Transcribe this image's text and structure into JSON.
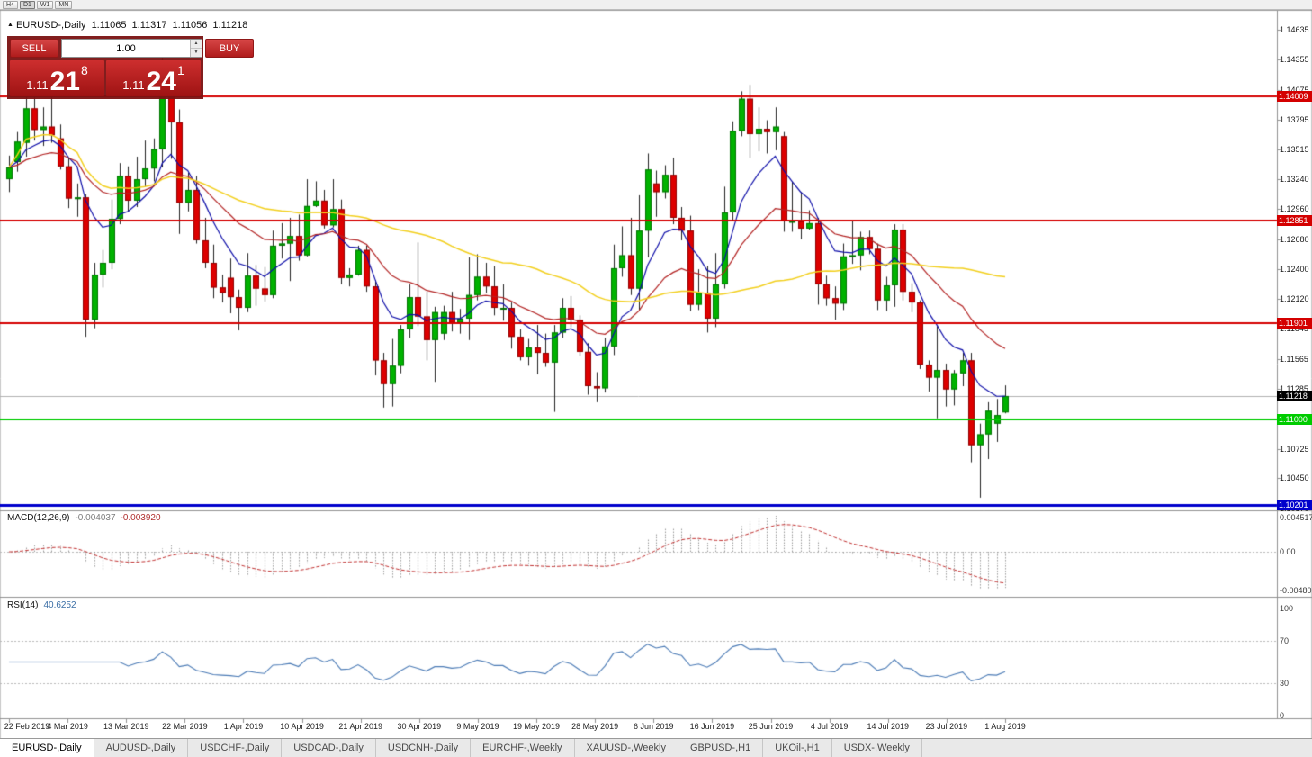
{
  "toolbar": {
    "timeframes": [
      {
        "label": "H4",
        "active": false
      },
      {
        "label": "D1",
        "active": true
      },
      {
        "label": "W1",
        "active": false
      },
      {
        "label": "MN",
        "active": false
      }
    ]
  },
  "chart_header": {
    "marker": "▲",
    "symbol": "EURUSD-,Daily",
    "open": "1.11065",
    "high": "1.11317",
    "low": "1.11056",
    "close": "1.11218"
  },
  "trade_panel": {
    "sell_label": "SELL",
    "buy_label": "BUY",
    "volume": "1.00",
    "spinner_up": "▲",
    "spinner_down": "▼",
    "sell_price": {
      "prefix": "1.11",
      "big": "21",
      "sup": "8"
    },
    "buy_price": {
      "prefix": "1.11",
      "big": "24",
      "sup": "1"
    }
  },
  "price_axis": {
    "labels": [
      "1.14635",
      "1.14355",
      "1.14075",
      "1.13795",
      "1.13515",
      "1.13240",
      "1.12960",
      "1.12680",
      "1.12400",
      "1.12120",
      "1.11845",
      "1.11565",
      "1.11285",
      "1.11005",
      "1.10725",
      "1.10450",
      "1.10170"
    ],
    "current": {
      "label": "1.11218",
      "color": "#000000"
    }
  },
  "levels": [
    {
      "label": "1.14009",
      "price": 1.14009,
      "color": "#d40000",
      "width": 2
    },
    {
      "label": "1.12851",
      "price": 1.12851,
      "color": "#d40000",
      "width": 2
    },
    {
      "label": "1.11901",
      "price": 1.11901,
      "color": "#d40000",
      "width": 2
    },
    {
      "label": "1.11000",
      "price": 1.11,
      "color": "#00cc00",
      "width": 2
    },
    {
      "label": "1.10201",
      "price": 1.10201,
      "color": "#0000cc",
      "width": 3
    }
  ],
  "macd_panel": {
    "title": "MACD(12,26,9)",
    "value_main": "-0.004037",
    "value_signal": "-0.003920",
    "axis_labels": [
      "0.004517",
      "0.00",
      "-0.00480"
    ],
    "fast": 12,
    "slow": 26,
    "signal": 9
  },
  "rsi_panel": {
    "title": "RSI(14)",
    "value": "40.6252",
    "axis_labels": [
      "100",
      "70",
      "30",
      "0"
    ],
    "period": 14,
    "upper": 70,
    "lower": 30
  },
  "date_axis": {
    "labels": [
      "22 Feb 2019",
      "4 Mar 2019",
      "13 Mar 2019",
      "22 Mar 2019",
      "1 Apr 2019",
      "10 Apr 2019",
      "21 Apr 2019",
      "30 Apr 2019",
      "9 May 2019",
      "19 May 2019",
      "28 May 2019",
      "6 Jun 2019",
      "16 Jun 2019",
      "25 Jun 2019",
      "4 Jul 2019",
      "14 Jul 2019",
      "23 Jul 2019",
      "1 Aug 2019"
    ]
  },
  "tabs": [
    {
      "label": "EURUSD-,Daily",
      "active": true
    },
    {
      "label": "AUDUSD-,Daily",
      "active": false
    },
    {
      "label": "USDCHF-,Daily",
      "active": false
    },
    {
      "label": "USDCAD-,Daily",
      "active": false
    },
    {
      "label": "USDCNH-,Daily",
      "active": false
    },
    {
      "label": "EURCHF-,Weekly",
      "active": false
    },
    {
      "label": "XAUUSD-,Weekly",
      "active": false
    },
    {
      "label": "GBPUSD-,H1",
      "active": false
    },
    {
      "label": "UKOil-,H1",
      "active": false
    },
    {
      "label": "USDX-,Weekly",
      "active": false
    }
  ],
  "chart_data": {
    "type": "candlestick",
    "symbol": "EURUSD",
    "timeframe": "Daily",
    "title": "EURUSD-,Daily",
    "price_range": {
      "min": 1.1016,
      "max": 1.1481
    },
    "current_bid": 1.11218,
    "current_ask": 1.11241,
    "colors": {
      "up": "#00b200",
      "down": "#dd0000",
      "wick": "#222222",
      "up_border": "#007300",
      "down_border": "#8f0000",
      "ma_fast": "#0d0da8",
      "ma_mid": "#b22222",
      "ma_slow": "#f2cf1d",
      "macd_hist": "#9a9a9a",
      "macd_signal": "#c03030",
      "rsi_line": "#4a7ab5",
      "current_line": "#b0b0b0"
    },
    "moving_averages": [
      {
        "type": "ema",
        "period": 8,
        "color_key": "ma_fast"
      },
      {
        "type": "ema",
        "period": 21,
        "color_key": "ma_mid"
      },
      {
        "type": "sma",
        "period": 50,
        "color_key": "ma_slow"
      }
    ],
    "candles": [
      [
        "2019-02-22",
        1.1324,
        1.1346,
        1.1312,
        1.1335
      ],
      [
        "2019-02-25",
        1.134,
        1.1368,
        1.1331,
        1.1359
      ],
      [
        "2019-02-26",
        1.1358,
        1.1403,
        1.1345,
        1.139
      ],
      [
        "2019-02-27",
        1.139,
        1.1404,
        1.136,
        1.137
      ],
      [
        "2019-02-28",
        1.137,
        1.1391,
        1.1355,
        1.1373
      ],
      [
        "2019-03-01",
        1.1373,
        1.1409,
        1.1358,
        1.1365
      ],
      [
        "2019-03-04",
        1.1362,
        1.1375,
        1.1333,
        1.1336
      ],
      [
        "2019-03-05",
        1.1336,
        1.1344,
        1.1297,
        1.1306
      ],
      [
        "2019-03-06",
        1.1306,
        1.132,
        1.1289,
        1.1307
      ],
      [
        "2019-03-07",
        1.1307,
        1.131,
        1.1177,
        1.1193
      ],
      [
        "2019-03-08",
        1.1193,
        1.1246,
        1.1185,
        1.1235
      ],
      [
        "2019-03-11",
        1.1235,
        1.1258,
        1.1223,
        1.1246
      ],
      [
        "2019-03-12",
        1.1246,
        1.1305,
        1.124,
        1.1287
      ],
      [
        "2019-03-13",
        1.1287,
        1.1339,
        1.1282,
        1.1327
      ],
      [
        "2019-03-14",
        1.1327,
        1.1336,
        1.1294,
        1.1304
      ],
      [
        "2019-03-15",
        1.1304,
        1.1345,
        1.1298,
        1.1324
      ],
      [
        "2019-03-18",
        1.1324,
        1.136,
        1.1317,
        1.1334
      ],
      [
        "2019-03-19",
        1.1334,
        1.1362,
        1.1322,
        1.1352
      ],
      [
        "2019-03-20",
        1.1352,
        1.1438,
        1.1335,
        1.1412
      ],
      [
        "2019-03-21",
        1.1412,
        1.1419,
        1.1343,
        1.1377
      ],
      [
        "2019-03-22",
        1.1377,
        1.1389,
        1.1273,
        1.1302
      ],
      [
        "2019-03-25",
        1.1302,
        1.133,
        1.1294,
        1.1314
      ],
      [
        "2019-03-26",
        1.1314,
        1.1327,
        1.1264,
        1.1267
      ],
      [
        "2019-03-27",
        1.1267,
        1.1288,
        1.1241,
        1.1246
      ],
      [
        "2019-03-28",
        1.1246,
        1.1263,
        1.1213,
        1.1223
      ],
      [
        "2019-03-29",
        1.1223,
        1.1235,
        1.1209,
        1.1218
      ],
      [
        "2019-04-01",
        1.1232,
        1.125,
        1.1199,
        1.1214
      ],
      [
        "2019-04-02",
        1.1214,
        1.1221,
        1.1183,
        1.1204
      ],
      [
        "2019-04-03",
        1.1204,
        1.1255,
        1.12,
        1.1234
      ],
      [
        "2019-04-04",
        1.1234,
        1.1244,
        1.1206,
        1.1222
      ],
      [
        "2019-04-05",
        1.1222,
        1.1242,
        1.121,
        1.1216
      ],
      [
        "2019-04-08",
        1.1216,
        1.1276,
        1.1213,
        1.1262
      ],
      [
        "2019-04-09",
        1.1262,
        1.1283,
        1.125,
        1.1264
      ],
      [
        "2019-04-10",
        1.1264,
        1.1288,
        1.1229,
        1.1271
      ],
      [
        "2019-04-11",
        1.1271,
        1.1291,
        1.1248,
        1.1253
      ],
      [
        "2019-04-12",
        1.1253,
        1.1324,
        1.1252,
        1.1299
      ],
      [
        "2019-04-15",
        1.1299,
        1.1322,
        1.1298,
        1.1304
      ],
      [
        "2019-04-16",
        1.1304,
        1.1314,
        1.1278,
        1.1281
      ],
      [
        "2019-04-17",
        1.1281,
        1.1324,
        1.1279,
        1.1296
      ],
      [
        "2019-04-18",
        1.1296,
        1.1305,
        1.1226,
        1.1232
      ],
      [
        "2019-04-19",
        1.1232,
        1.1241,
        1.1224,
        1.1235
      ],
      [
        "2019-04-22",
        1.1235,
        1.1262,
        1.1234,
        1.1258
      ],
      [
        "2019-04-23",
        1.1258,
        1.1262,
        1.1219,
        1.1224
      ],
      [
        "2019-04-24",
        1.1224,
        1.123,
        1.1141,
        1.1155
      ],
      [
        "2019-04-25",
        1.1155,
        1.1162,
        1.1111,
        1.1133
      ],
      [
        "2019-04-26",
        1.1133,
        1.1175,
        1.1112,
        1.115
      ],
      [
        "2019-04-29",
        1.115,
        1.1188,
        1.1143,
        1.1184
      ],
      [
        "2019-04-30",
        1.1184,
        1.1226,
        1.1176,
        1.1214
      ],
      [
        "2019-05-01",
        1.1214,
        1.1265,
        1.1187,
        1.1196
      ],
      [
        "2019-05-02",
        1.1196,
        1.1219,
        1.1155,
        1.1174
      ],
      [
        "2019-05-03",
        1.1174,
        1.1205,
        1.1135,
        1.12
      ],
      [
        "2019-05-06",
        1.118,
        1.1206,
        1.1174,
        1.12
      ],
      [
        "2019-05-07",
        1.12,
        1.1219,
        1.1182,
        1.119
      ],
      [
        "2019-05-08",
        1.119,
        1.1203,
        1.118,
        1.1194
      ],
      [
        "2019-05-09",
        1.1194,
        1.1251,
        1.1174,
        1.1216
      ],
      [
        "2019-05-10",
        1.1216,
        1.1254,
        1.1211,
        1.1233
      ],
      [
        "2019-05-13",
        1.1233,
        1.1246,
        1.1218,
        1.1224
      ],
      [
        "2019-05-14",
        1.1224,
        1.1243,
        1.1197,
        1.1204
      ],
      [
        "2019-05-15",
        1.1204,
        1.1226,
        1.1192,
        1.1204
      ],
      [
        "2019-05-16",
        1.1204,
        1.1209,
        1.1166,
        1.1177
      ],
      [
        "2019-05-17",
        1.1177,
        1.1184,
        1.1155,
        1.1158
      ],
      [
        "2019-05-20",
        1.1158,
        1.1175,
        1.115,
        1.1167
      ],
      [
        "2019-05-21",
        1.1167,
        1.1188,
        1.1142,
        1.1162
      ],
      [
        "2019-05-22",
        1.1162,
        1.118,
        1.1149,
        1.1153
      ],
      [
        "2019-05-23",
        1.1153,
        1.1188,
        1.1107,
        1.1181
      ],
      [
        "2019-05-24",
        1.1181,
        1.1213,
        1.1176,
        1.1204
      ],
      [
        "2019-05-27",
        1.1204,
        1.1215,
        1.1186,
        1.1193
      ],
      [
        "2019-05-28",
        1.1193,
        1.1197,
        1.1159,
        1.1163
      ],
      [
        "2019-05-29",
        1.1163,
        1.1171,
        1.1123,
        1.1131
      ],
      [
        "2019-05-30",
        1.1131,
        1.1144,
        1.1116,
        1.1129
      ],
      [
        "2019-05-31",
        1.1129,
        1.1176,
        1.1125,
        1.1168
      ],
      [
        "2019-06-03",
        1.1168,
        1.1263,
        1.116,
        1.1241
      ],
      [
        "2019-06-04",
        1.1241,
        1.128,
        1.1233,
        1.1253
      ],
      [
        "2019-06-05",
        1.1253,
        1.1288,
        1.1216,
        1.1222
      ],
      [
        "2019-06-06",
        1.1222,
        1.1309,
        1.1202,
        1.1276
      ],
      [
        "2019-06-07",
        1.1276,
        1.1348,
        1.1251,
        1.1333
      ],
      [
        "2019-06-10",
        1.132,
        1.1332,
        1.1289,
        1.1312
      ],
      [
        "2019-06-11",
        1.1312,
        1.1337,
        1.1306,
        1.1328
      ],
      [
        "2019-06-12",
        1.1328,
        1.1344,
        1.1282,
        1.1288
      ],
      [
        "2019-06-13",
        1.1288,
        1.1298,
        1.1267,
        1.1276
      ],
      [
        "2019-06-14",
        1.1276,
        1.129,
        1.1201,
        1.1207
      ],
      [
        "2019-06-17",
        1.1207,
        1.124,
        1.1202,
        1.1218
      ],
      [
        "2019-06-18",
        1.1218,
        1.1243,
        1.1181,
        1.1194
      ],
      [
        "2019-06-19",
        1.1194,
        1.1255,
        1.1186,
        1.1226
      ],
      [
        "2019-06-20",
        1.1226,
        1.1317,
        1.1222,
        1.1293
      ],
      [
        "2019-06-21",
        1.1293,
        1.1378,
        1.1285,
        1.1369
      ],
      [
        "2019-06-24",
        1.1369,
        1.1406,
        1.1364,
        1.1399
      ],
      [
        "2019-06-25",
        1.1399,
        1.1412,
        1.1344,
        1.1366
      ],
      [
        "2019-06-26",
        1.1366,
        1.1391,
        1.135,
        1.1371
      ],
      [
        "2019-06-27",
        1.1371,
        1.1379,
        1.1348,
        1.1368
      ],
      [
        "2019-06-28",
        1.1368,
        1.1391,
        1.1351,
        1.1373
      ],
      [
        "2019-07-01",
        1.1364,
        1.1368,
        1.1275,
        1.1285
      ],
      [
        "2019-07-02",
        1.1285,
        1.1322,
        1.1275,
        1.1285
      ],
      [
        "2019-07-03",
        1.1285,
        1.1312,
        1.1268,
        1.1278
      ],
      [
        "2019-07-04",
        1.1278,
        1.1295,
        1.1277,
        1.1283
      ],
      [
        "2019-07-05",
        1.1283,
        1.1288,
        1.1207,
        1.1226
      ],
      [
        "2019-07-08",
        1.1226,
        1.1234,
        1.1206,
        1.1213
      ],
      [
        "2019-07-09",
        1.1213,
        1.1224,
        1.1193,
        1.1208
      ],
      [
        "2019-07-10",
        1.1208,
        1.1264,
        1.1202,
        1.1252
      ],
      [
        "2019-07-11",
        1.1252,
        1.1286,
        1.1245,
        1.1253
      ],
      [
        "2019-07-12",
        1.1253,
        1.1275,
        1.1239,
        1.127
      ],
      [
        "2019-07-15",
        1.127,
        1.1276,
        1.1254,
        1.1259
      ],
      [
        "2019-07-16",
        1.1259,
        1.1264,
        1.1202,
        1.1211
      ],
      [
        "2019-07-17",
        1.1211,
        1.1233,
        1.1201,
        1.1225
      ],
      [
        "2019-07-18",
        1.1225,
        1.1282,
        1.1205,
        1.1277
      ],
      [
        "2019-07-19",
        1.1277,
        1.1282,
        1.1211,
        1.1219
      ],
      [
        "2019-07-22",
        1.1219,
        1.1227,
        1.12,
        1.1209
      ],
      [
        "2019-07-23",
        1.1209,
        1.1211,
        1.1147,
        1.1151
      ],
      [
        "2019-07-24",
        1.1151,
        1.1155,
        1.1126,
        1.1139
      ],
      [
        "2019-07-25",
        1.1139,
        1.1187,
        1.1101,
        1.1146
      ],
      [
        "2019-07-26",
        1.1146,
        1.1152,
        1.1112,
        1.1128
      ],
      [
        "2019-07-29",
        1.1128,
        1.1146,
        1.1113,
        1.1143
      ],
      [
        "2019-07-30",
        1.1143,
        1.1162,
        1.1131,
        1.1155
      ],
      [
        "2019-07-31",
        1.1155,
        1.1162,
        1.106,
        1.1076
      ],
      [
        "2019-08-01",
        1.1076,
        1.1096,
        1.1027,
        1.1086
      ],
      [
        "2019-08-02",
        1.1086,
        1.1116,
        1.1063,
        1.1108
      ],
      [
        "2019-08-05",
        1.1096,
        1.1119,
        1.1079,
        1.1104
      ],
      [
        "2019-08-06",
        1.11065,
        1.11317,
        1.11056,
        1.11218
      ]
    ]
  }
}
